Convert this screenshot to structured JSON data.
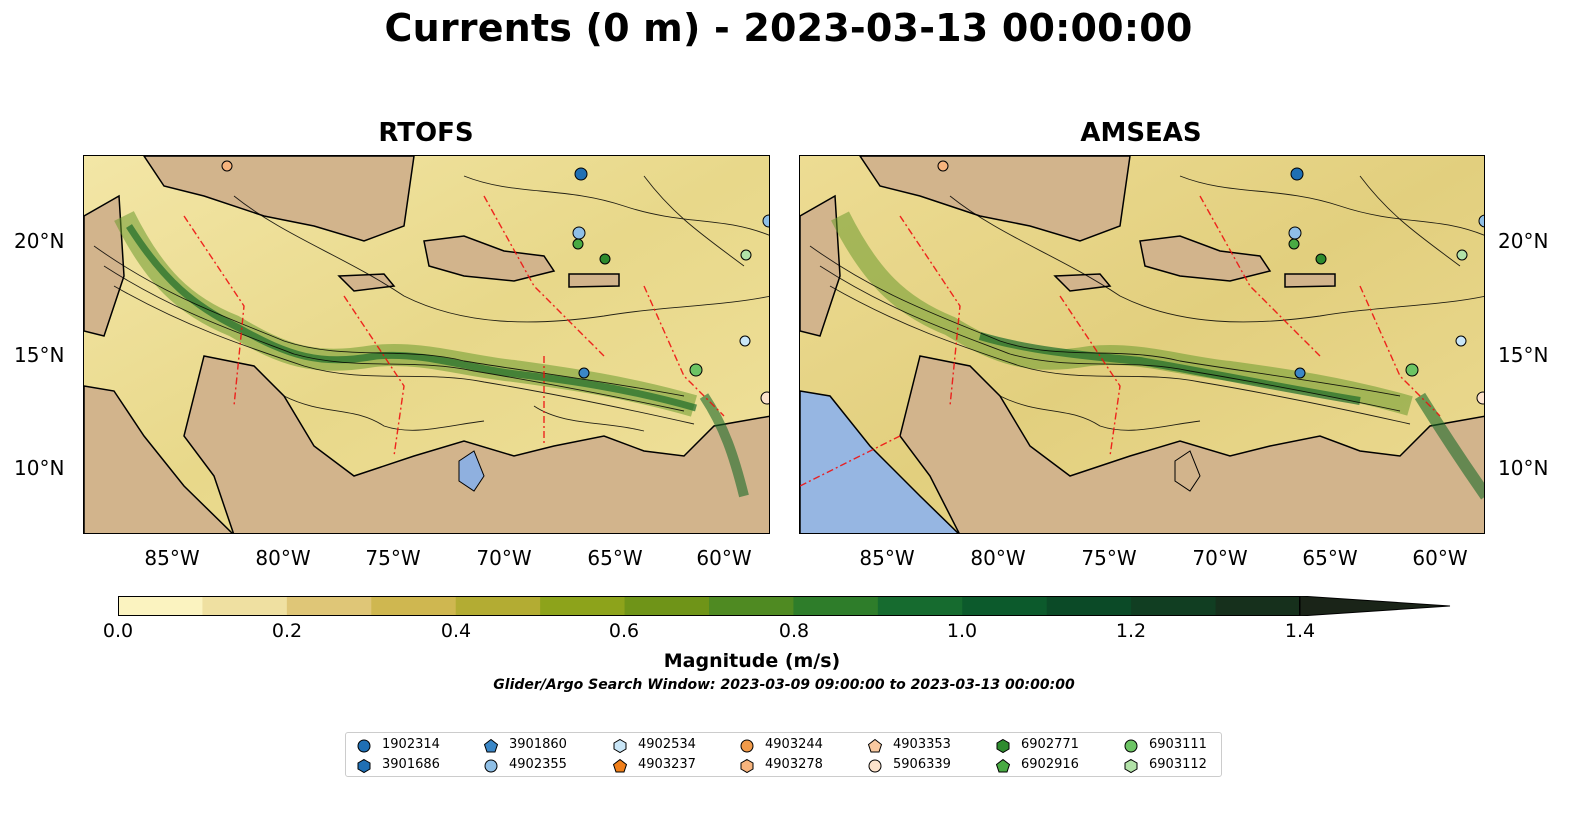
{
  "figure": {
    "title": "Currents (0 m) - 2023-03-13 00:00:00"
  },
  "panels": [
    {
      "title": "RTOFS"
    },
    {
      "title": "AMSEAS"
    }
  ],
  "axes": {
    "lat_labels": [
      "20°N",
      "15°N",
      "10°N"
    ],
    "lon_labels": [
      "85°W",
      "80°W",
      "75°W",
      "70°W",
      "65°W",
      "60°W"
    ]
  },
  "colorbar": {
    "label": "Magnitude (m/s)",
    "tick_labels": [
      "0.0",
      "0.2",
      "0.4",
      "0.6",
      "0.8",
      "1.0",
      "1.2",
      "1.4"
    ],
    "colors": [
      "#fbf3c0",
      "#efe0a1",
      "#dfc677",
      "#cfb750",
      "#b3ac33",
      "#8da31b",
      "#6f9418",
      "#4f8a22",
      "#2e7d2a",
      "#166b2f",
      "#0c5a2c",
      "#0b4a27",
      "#113e22",
      "#16301c",
      "#1a2418"
    ]
  },
  "subtitle": "Glider/Argo Search Window: 2023-03-09 09:00:00 to 2023-03-13 00:00:00",
  "legend": {
    "items": [
      {
        "id": "1902314",
        "shape": "circle",
        "color": "#1f6fb4"
      },
      {
        "id": "3901686",
        "shape": "hexagon",
        "color": "#1f6fb4"
      },
      {
        "id": "3901860",
        "shape": "pentagon",
        "color": "#3b87c7"
      },
      {
        "id": "4902355",
        "shape": "circle",
        "color": "#8fbfe6"
      },
      {
        "id": "4902534",
        "shape": "hexagon",
        "color": "#c9e6f7"
      },
      {
        "id": "4903237",
        "shape": "pentagon",
        "color": "#f07f1a"
      },
      {
        "id": "4903244",
        "shape": "circle",
        "color": "#f29b4a"
      },
      {
        "id": "4903278",
        "shape": "hexagon",
        "color": "#f7b47d"
      },
      {
        "id": "4903353",
        "shape": "pentagon",
        "color": "#f8c9a0"
      },
      {
        "id": "5906339",
        "shape": "circle",
        "color": "#fde3cc"
      },
      {
        "id": "6902771",
        "shape": "hexagon",
        "color": "#2e8b2e"
      },
      {
        "id": "6902916",
        "shape": "pentagon",
        "color": "#49aa43"
      },
      {
        "id": "6903111",
        "shape": "circle",
        "color": "#6cc464"
      },
      {
        "id": "6903112",
        "shape": "hexagon",
        "color": "#b2e2a8"
      }
    ]
  }
}
